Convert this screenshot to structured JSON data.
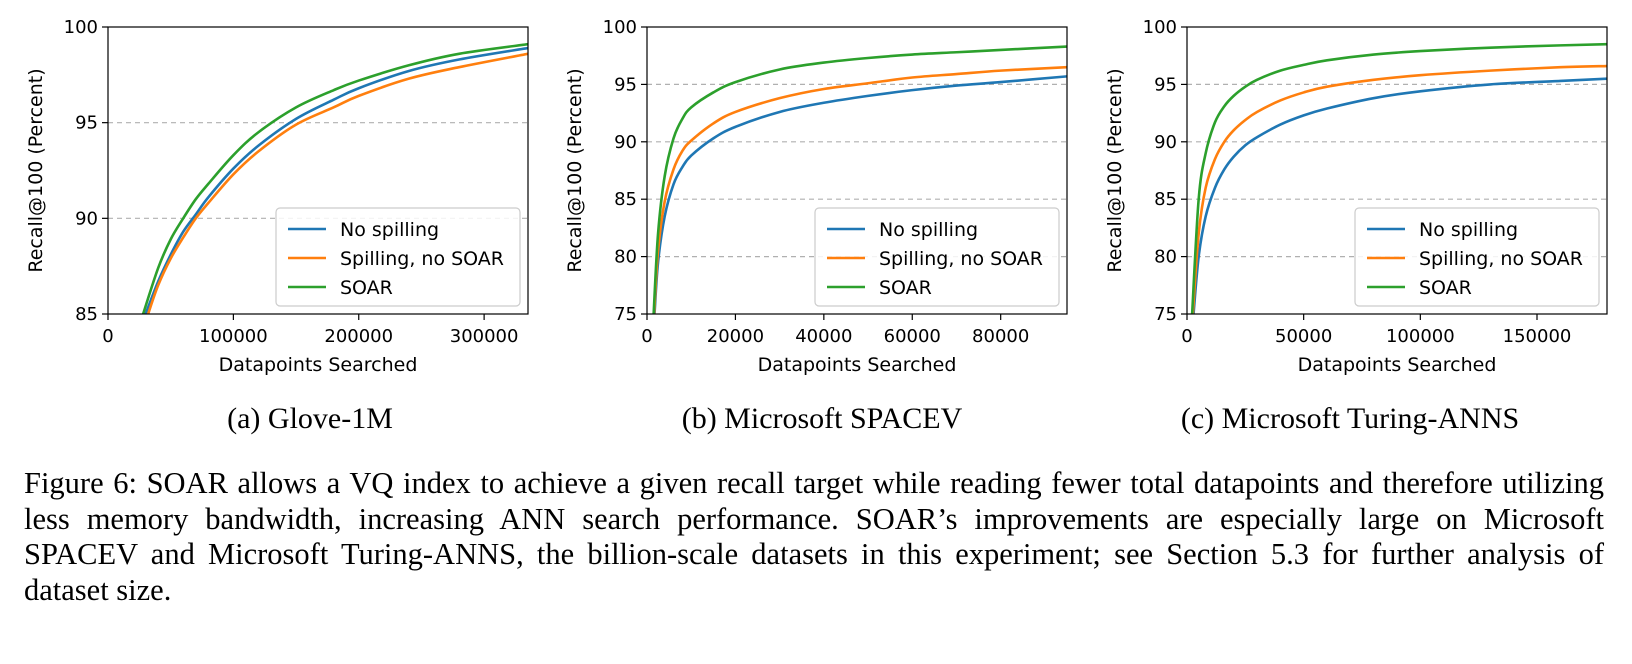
{
  "chart_data": [
    {
      "type": "line",
      "subcaption": "(a) Glove-1M",
      "xlabel": "Datapoints Searched",
      "ylabel": "Recall@100 (Percent)",
      "xlim": [
        0,
        335000
      ],
      "ylim": [
        85,
        100
      ],
      "xticks": [
        0,
        100000,
        200000,
        300000
      ],
      "yticks": [
        85,
        90,
        95,
        100
      ],
      "grid": "horizontal-dashed",
      "legend_position": "lower-right",
      "series": [
        {
          "name": "No spilling",
          "color": "#1f77b4",
          "x": [
            30000,
            40000,
            50000,
            60000,
            70000,
            80000,
            100000,
            120000,
            150000,
            180000,
            200000,
            240000,
            280000,
            335000
          ],
          "y": [
            85.0,
            86.7,
            88.1,
            89.3,
            90.2,
            91.1,
            92.6,
            93.8,
            95.2,
            96.2,
            96.8,
            97.7,
            98.3,
            98.9
          ]
        },
        {
          "name": "Spilling, no SOAR",
          "color": "#ff7f0e",
          "x": [
            32000,
            40000,
            50000,
            60000,
            70000,
            80000,
            100000,
            120000,
            150000,
            180000,
            200000,
            240000,
            280000,
            335000
          ],
          "y": [
            85.0,
            86.5,
            87.9,
            89.0,
            90.0,
            90.8,
            92.3,
            93.5,
            94.9,
            95.8,
            96.4,
            97.3,
            97.9,
            98.6
          ]
        },
        {
          "name": "SOAR",
          "color": "#2ca02c",
          "x": [
            28000,
            40000,
            50000,
            60000,
            70000,
            80000,
            100000,
            120000,
            150000,
            180000,
            200000,
            240000,
            280000,
            335000
          ],
          "y": [
            85.0,
            87.4,
            88.9,
            90.0,
            91.0,
            91.8,
            93.3,
            94.5,
            95.8,
            96.7,
            97.2,
            98.0,
            98.6,
            99.1
          ]
        }
      ]
    },
    {
      "type": "line",
      "subcaption": "(b) Microsoft SPACEV",
      "xlabel": "Datapoints Searched",
      "ylabel": "Recall@100 (Percent)",
      "xlim": [
        0,
        95000
      ],
      "ylim": [
        75,
        100
      ],
      "xticks": [
        0,
        20000,
        40000,
        60000,
        80000
      ],
      "yticks": [
        75,
        80,
        85,
        90,
        95,
        100
      ],
      "grid": "horizontal-dashed",
      "legend_position": "lower-right",
      "series": [
        {
          "name": "No spilling",
          "color": "#1f77b4",
          "x": [
            1700,
            2500,
            4000,
            6000,
            8000,
            10000,
            15000,
            20000,
            30000,
            40000,
            50000,
            60000,
            70000,
            80000,
            95000
          ],
          "y": [
            75.0,
            79.5,
            83.5,
            86.3,
            87.8,
            88.8,
            90.3,
            91.3,
            92.6,
            93.4,
            94.0,
            94.5,
            94.9,
            95.2,
            95.7
          ]
        },
        {
          "name": "Spilling, no SOAR",
          "color": "#ff7f0e",
          "x": [
            1600,
            2500,
            4000,
            6000,
            8000,
            10000,
            15000,
            20000,
            30000,
            40000,
            50000,
            60000,
            70000,
            80000,
            95000
          ],
          "y": [
            75.0,
            80.5,
            84.8,
            87.6,
            89.2,
            90.1,
            91.6,
            92.6,
            93.8,
            94.6,
            95.1,
            95.6,
            95.9,
            96.2,
            96.5
          ]
        },
        {
          "name": "SOAR",
          "color": "#2ca02c",
          "x": [
            1500,
            2500,
            4000,
            6000,
            8000,
            10000,
            15000,
            20000,
            30000,
            40000,
            50000,
            60000,
            70000,
            80000,
            95000
          ],
          "y": [
            75.0,
            82.0,
            87.0,
            90.3,
            92.0,
            93.0,
            94.3,
            95.2,
            96.3,
            96.9,
            97.3,
            97.6,
            97.8,
            98.0,
            98.3
          ]
        }
      ]
    },
    {
      "type": "line",
      "subcaption": "(c) Microsoft Turing-ANNS",
      "xlabel": "Datapoints Searched",
      "ylabel": "Recall@100 (Percent)",
      "xlim": [
        0,
        180000
      ],
      "ylim": [
        75,
        100
      ],
      "xticks": [
        0,
        50000,
        100000,
        150000
      ],
      "yticks": [
        75,
        80,
        85,
        90,
        95,
        100
      ],
      "grid": "horizontal-dashed",
      "legend_position": "lower-right",
      "series": [
        {
          "name": "No spilling",
          "color": "#1f77b4",
          "x": [
            2800,
            5000,
            8000,
            12000,
            16000,
            20000,
            25000,
            30000,
            40000,
            50000,
            60000,
            80000,
            100000,
            130000,
            160000,
            180000
          ],
          "y": [
            75.0,
            80.0,
            83.5,
            86.0,
            87.6,
            88.7,
            89.7,
            90.4,
            91.5,
            92.3,
            92.9,
            93.8,
            94.4,
            95.0,
            95.3,
            95.5
          ]
        },
        {
          "name": "Spilling, no SOAR",
          "color": "#ff7f0e",
          "x": [
            2500,
            5000,
            8000,
            12000,
            16000,
            20000,
            25000,
            30000,
            40000,
            50000,
            60000,
            80000,
            100000,
            130000,
            160000,
            180000
          ],
          "y": [
            75.0,
            82.0,
            86.0,
            88.5,
            90.0,
            91.0,
            91.9,
            92.6,
            93.6,
            94.3,
            94.8,
            95.4,
            95.8,
            96.2,
            96.5,
            96.6
          ]
        },
        {
          "name": "SOAR",
          "color": "#2ca02c",
          "x": [
            2200,
            5000,
            8000,
            12000,
            16000,
            20000,
            25000,
            30000,
            40000,
            50000,
            60000,
            80000,
            100000,
            130000,
            160000,
            180000
          ],
          "y": [
            75.0,
            85.0,
            89.0,
            91.7,
            93.1,
            94.0,
            94.8,
            95.4,
            96.2,
            96.7,
            97.1,
            97.6,
            97.9,
            98.2,
            98.4,
            98.5
          ]
        }
      ]
    }
  ],
  "caption": "Figure 6:  SOAR allows a VQ index to achieve a given recall target while reading fewer total datapoints and therefore utilizing less memory bandwidth, increasing ANN search performance. SOAR’s improvements are especially large on Microsoft SPACEV and Microsoft Turing-ANNS, the billion-scale datasets in this experiment; see Section 5.3 for further analysis of dataset size."
}
